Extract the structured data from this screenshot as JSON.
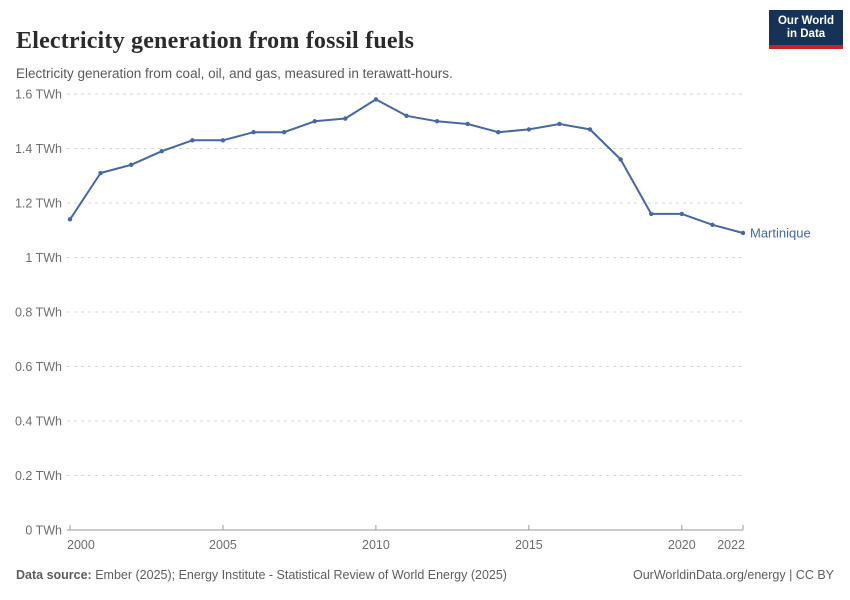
{
  "header": {
    "title": "Electricity generation from fossil fuels",
    "subtitle": "Electricity generation from coal, oil, and gas, measured in terawatt-hours.",
    "logo": {
      "line1": "Our World",
      "line2": "in Data"
    }
  },
  "chart_data": {
    "type": "line",
    "title": "Electricity generation from fossil fuels",
    "unit": "TWh",
    "x": [
      2000,
      2001,
      2002,
      2003,
      2004,
      2005,
      2006,
      2007,
      2008,
      2009,
      2010,
      2011,
      2012,
      2013,
      2014,
      2015,
      2016,
      2017,
      2018,
      2019,
      2020,
      2021,
      2022
    ],
    "series": [
      {
        "name": "Martinique",
        "values": [
          1.14,
          1.31,
          1.34,
          1.39,
          1.43,
          1.43,
          1.46,
          1.46,
          1.5,
          1.51,
          1.58,
          1.52,
          1.5,
          1.49,
          1.46,
          1.47,
          1.49,
          1.47,
          1.36,
          1.16,
          1.16,
          1.12,
          1.09
        ]
      }
    ],
    "xlabel": "",
    "ylabel": "",
    "ylim": [
      0,
      1.6
    ],
    "xlim": [
      2000,
      2022
    ],
    "grid": "horizontal-dashed",
    "legend": "end-of-line-label",
    "yticks": [
      {
        "value": 0,
        "label": "0 TWh"
      },
      {
        "value": 0.2,
        "label": "0.2 TWh"
      },
      {
        "value": 0.4,
        "label": "0.4 TWh"
      },
      {
        "value": 0.6,
        "label": "0.6 TWh"
      },
      {
        "value": 0.8,
        "label": "0.8 TWh"
      },
      {
        "value": 1,
        "label": "1 TWh"
      },
      {
        "value": 1.2,
        "label": "1.2 TWh"
      },
      {
        "value": 1.4,
        "label": "1.4 TWh"
      },
      {
        "value": 1.6,
        "label": "1.6 TWh"
      }
    ],
    "xticks": [
      {
        "value": 2000,
        "label": "2000"
      },
      {
        "value": 2005,
        "label": "2005"
      },
      {
        "value": 2010,
        "label": "2010"
      },
      {
        "value": 2015,
        "label": "2015"
      },
      {
        "value": 2020,
        "label": "2020"
      },
      {
        "value": 2022,
        "label": "2022"
      }
    ]
  },
  "footer": {
    "datasource_label": "Data source:",
    "datasource_text": " Ember (2025); Energy Institute - Statistical Review of World Energy (2025)",
    "credit": "OurWorldinData.org/energy | CC BY"
  },
  "colors": {
    "line": "#4668a3",
    "entity_label": "#4668a3",
    "grid": "#d4d4d4",
    "axis": "#999999",
    "tick_text": "#6e6e6e",
    "logo_bg": "#163357",
    "logo_stripe": "#cc2222"
  }
}
